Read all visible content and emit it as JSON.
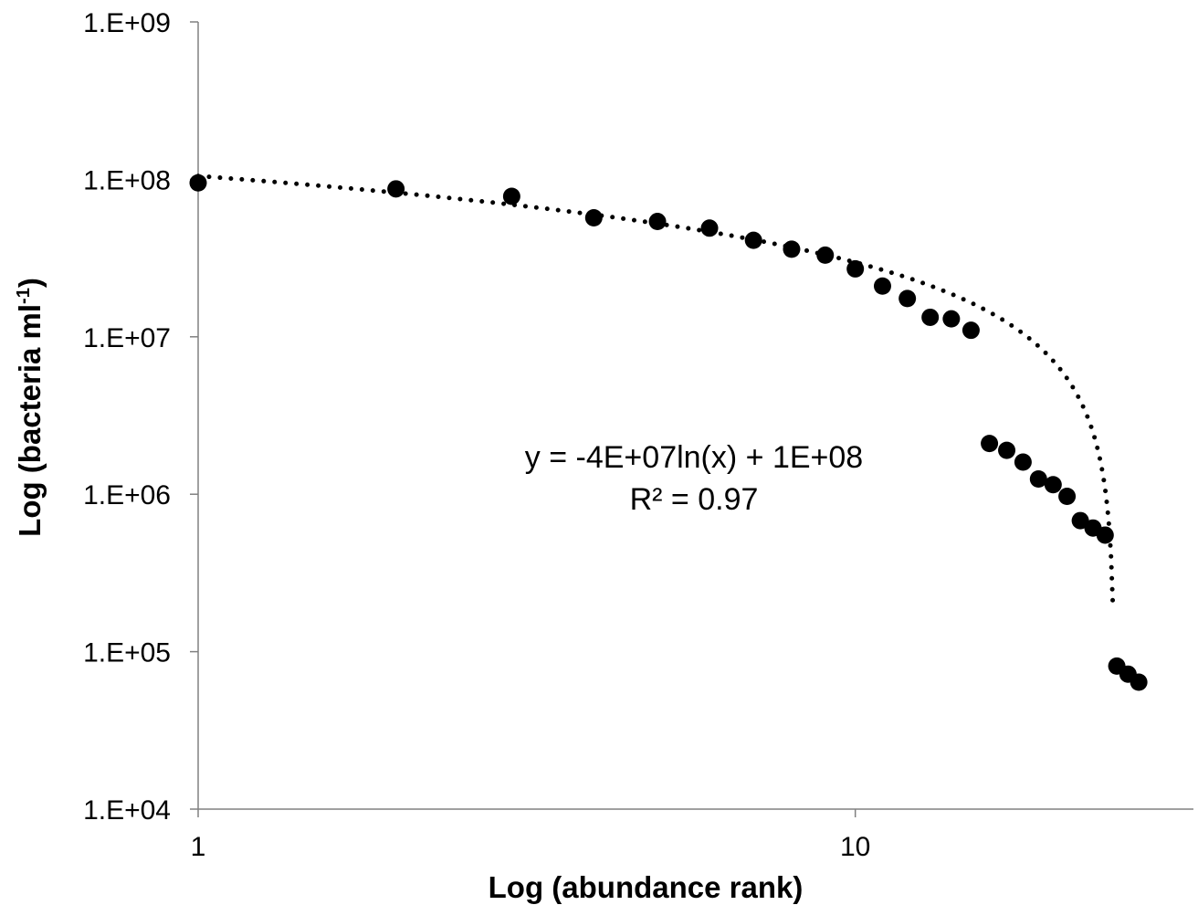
{
  "chart_data": {
    "type": "scatter",
    "xscale": "log",
    "yscale": "log",
    "xlim": [
      1,
      32.7
    ],
    "ylim": [
      10000,
      1000000000
    ],
    "grid": false,
    "legend": "none",
    "xlabel": "Log (abundance rank)",
    "ylabel_main": "Log (bacteria ml",
    "ylabel_sup": "-1",
    "ylabel_end": ")",
    "x_ticks": [
      {
        "value": 1,
        "label": "1"
      },
      {
        "value": 10,
        "label": "10"
      }
    ],
    "y_ticks": [
      {
        "value": 10000,
        "label": "1.E+04"
      },
      {
        "value": 100000,
        "label": "1.E+05"
      },
      {
        "value": 1000000,
        "label": "1.E+06"
      },
      {
        "value": 10000000,
        "label": "1.E+07"
      },
      {
        "value": 100000000,
        "label": "1.E+08"
      },
      {
        "value": 1000000000,
        "label": "1.E+09"
      }
    ],
    "series": [
      {
        "points": [
          {
            "x": 1,
            "y": 95000000
          },
          {
            "x": 2,
            "y": 87000000
          },
          {
            "x": 3,
            "y": 78000000
          },
          {
            "x": 4,
            "y": 57000000
          },
          {
            "x": 5,
            "y": 54000000
          },
          {
            "x": 6,
            "y": 49000000
          },
          {
            "x": 7,
            "y": 41000000
          },
          {
            "x": 8,
            "y": 36000000
          },
          {
            "x": 9,
            "y": 33000000
          },
          {
            "x": 10,
            "y": 27000000
          },
          {
            "x": 11,
            "y": 21000000
          },
          {
            "x": 12,
            "y": 17500000
          },
          {
            "x": 13,
            "y": 13300000
          },
          {
            "x": 14,
            "y": 13000000
          },
          {
            "x": 15,
            "y": 11000000
          },
          {
            "x": 16,
            "y": 2100000
          },
          {
            "x": 17,
            "y": 1900000
          },
          {
            "x": 18,
            "y": 1600000
          },
          {
            "x": 19,
            "y": 1250000
          },
          {
            "x": 20,
            "y": 1150000
          },
          {
            "x": 21,
            "y": 970000
          },
          {
            "x": 22,
            "y": 680000
          },
          {
            "x": 23,
            "y": 610000
          },
          {
            "x": 24,
            "y": 550000
          },
          {
            "x": 25,
            "y": 81000
          },
          {
            "x": 26,
            "y": 72000
          },
          {
            "x": 27,
            "y": 64000
          }
        ]
      }
    ],
    "trendline": {
      "style": "dotted",
      "equation_text": "y = -4E+07ln(x)  + 1E+08",
      "r2_text": "R² = 0.97"
    }
  }
}
